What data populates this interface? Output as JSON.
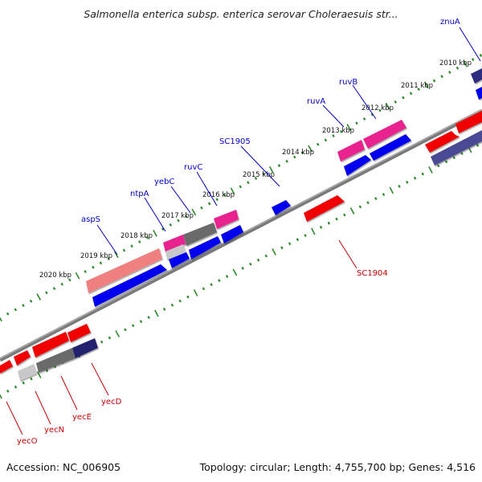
{
  "map": {
    "title": "Salmonella enterica subsp. enterica serovar Choleraesuis str...",
    "accession": "Accession: NC_006905",
    "summary": "Topology: circular; Length: 4,755,700 bp; Genes: 4,516",
    "colors": {
      "forward_cds": "#f00000",
      "reverse_cds": "#0000ee",
      "pink_feature": "#e8208e",
      "salmon_feature": "#f08080",
      "gray_feature": "#6b6b6b",
      "navy_feature": "#22226e",
      "backbone": "#7a7a7a",
      "tick": "#2a8a2a",
      "blue_label": "#0000cc",
      "red_label": "#cc0000"
    },
    "kbp_labels": [
      "2010 kbp",
      "2011 kbp",
      "2012 kbp",
      "2013 kbp",
      "2014 kbp",
      "2015 kbp",
      "2016 kbp",
      "2017 kbp",
      "2018 kbp",
      "2019 kbp",
      "2020 kbp"
    ],
    "gene_labels_top": [
      "znuA",
      "ruvB",
      "ruvA",
      "SC1905",
      "yebC",
      "ruvC",
      "ntpA",
      "aspS"
    ],
    "gene_labels_bottom": [
      "SC1904",
      "yecD",
      "yecE",
      "yecN",
      "yecO"
    ]
  }
}
